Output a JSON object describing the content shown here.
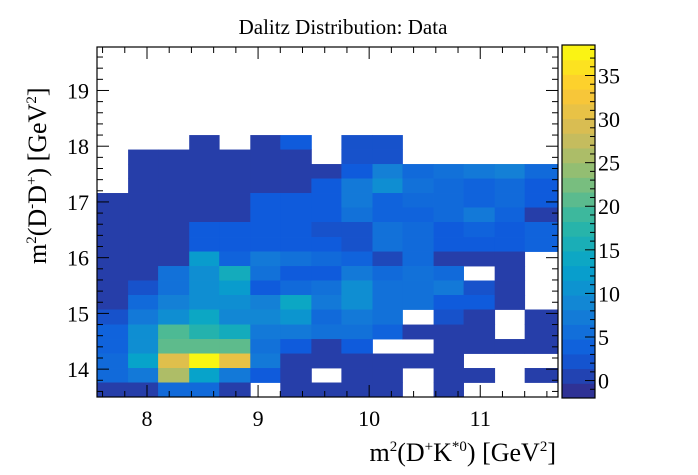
{
  "chart_data": {
    "type": "heatmap",
    "title": "Dalitz Distribution: Data",
    "xlabel": "m²(D⁺K*⁰) [GeV²]",
    "ylabel": "m²(D⁻D⁺) [GeV²]",
    "xlim": [
      7.55,
      11.7
    ],
    "ylim": [
      13.5,
      19.78
    ],
    "x_bin_edges": [
      7.55,
      7.83,
      8.1,
      8.38,
      8.65,
      8.93,
      9.2,
      9.48,
      9.75,
      10.03,
      10.3,
      10.58,
      10.85,
      11.13,
      11.4,
      11.7
    ],
    "y_bin_edges": [
      13.5,
      13.76,
      14.02,
      14.28,
      14.54,
      14.8,
      15.07,
      15.33,
      15.59,
      15.85,
      16.11,
      16.37,
      16.64,
      16.9,
      17.16,
      17.42,
      17.68,
      17.94,
      18.2,
      18.46,
      18.73,
      18.99,
      19.25,
      19.51,
      19.78
    ],
    "x_ticks": [
      "8",
      "9",
      "10",
      "11"
    ],
    "x_tick_values": [
      8,
      9,
      10,
      11
    ],
    "y_ticks": [
      "14",
      "15",
      "16",
      "17",
      "18",
      "19"
    ],
    "y_tick_values": [
      14,
      15,
      16,
      17,
      18,
      19
    ],
    "zlim": [
      -2,
      38.5
    ],
    "colorbar_ticks": [
      "0",
      "5",
      "10",
      "15",
      "20",
      "25",
      "30",
      "35"
    ],
    "colorbar_tick_values": [
      0,
      5,
      10,
      15,
      20,
      25,
      30,
      35
    ],
    "grid": false,
    "values": [
      [
        null,
        null,
        null,
        0,
        null,
        0,
        3,
        null,
        2,
        2,
        null,
        null,
        null,
        null,
        null
      ],
      [
        null,
        0,
        0,
        0,
        0,
        0,
        0,
        null,
        2,
        2,
        null,
        null,
        null,
        null,
        null
      ],
      [
        null,
        0,
        0,
        0,
        0,
        0,
        0,
        0,
        3,
        8,
        5,
        6,
        7,
        8,
        5
      ],
      [
        null,
        0,
        0,
        0,
        0,
        0,
        0,
        3,
        7,
        10,
        6,
        5,
        4,
        5,
        3
      ],
      [
        0,
        0,
        0,
        0,
        0,
        3,
        3,
        3,
        7,
        4,
        5,
        5,
        4,
        5,
        3
      ],
      [
        0,
        0,
        0,
        0,
        0,
        3,
        3,
        3,
        6,
        4,
        4,
        5,
        7,
        4,
        0
      ],
      [
        0,
        0,
        0,
        3,
        3,
        3,
        3,
        2,
        2,
        6,
        5,
        3,
        4,
        3,
        4
      ],
      [
        0,
        0,
        0,
        3,
        3,
        3,
        3,
        3,
        2,
        6,
        5,
        3,
        3,
        3,
        4
      ],
      [
        0,
        0,
        0,
        12,
        4,
        7,
        6,
        5,
        4,
        1,
        5,
        0,
        0,
        0,
        null
      ],
      [
        0,
        0,
        6,
        10,
        15,
        6,
        3,
        3,
        7,
        5,
        6,
        5,
        null,
        0,
        null
      ],
      [
        0,
        2,
        6,
        10,
        12,
        3,
        5,
        6,
        10,
        6,
        6,
        7,
        2,
        0,
        null
      ],
      [
        0,
        5,
        8,
        10,
        10,
        8,
        14,
        7,
        10,
        6,
        6,
        3,
        3,
        0,
        null
      ],
      [
        2,
        7,
        10,
        14,
        9,
        9,
        11,
        5,
        7,
        6,
        null,
        2,
        0,
        null,
        0
      ],
      [
        4,
        10,
        20,
        17,
        15,
        7,
        7,
        6,
        6,
        4,
        0,
        0,
        0,
        null,
        0
      ],
      [
        4,
        10,
        21,
        21,
        21,
        6,
        3,
        0,
        3,
        null,
        null,
        0,
        0,
        0,
        0
      ],
      [
        5,
        13,
        30,
        38,
        31,
        7,
        0,
        0,
        0,
        0,
        0,
        0,
        null,
        null,
        null
      ],
      [
        5,
        7,
        26,
        13,
        7,
        3,
        0,
        null,
        0,
        0,
        null,
        0,
        0,
        null,
        0
      ],
      [
        0,
        0,
        5,
        5,
        0,
        null,
        0,
        0,
        0,
        0,
        null,
        0,
        null,
        null,
        null
      ]
    ],
    "y_bin_start_index": 0,
    "colormap": [
      "#352a87",
      "#0f5cdd",
      "#1481d6",
      "#06a4ca",
      "#2eb7a4",
      "#87bf77",
      "#d1bb59",
      "#fec832",
      "#f9fb0e"
    ]
  }
}
